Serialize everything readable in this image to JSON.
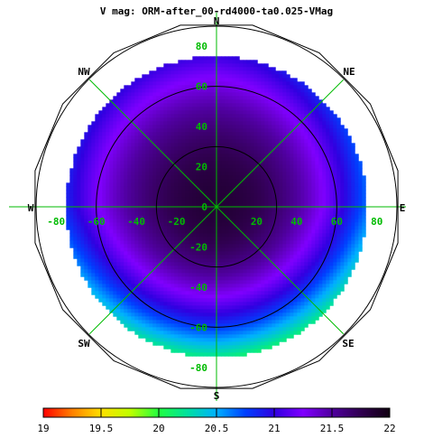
{
  "chart_data": {
    "type": "heatmap",
    "title": "V mag: ORM-after_00-rd4000-ta0.025-VMag",
    "projection": "polar",
    "compass_labels": [
      "N",
      "NE",
      "E",
      "SE",
      "S",
      "SW",
      "W",
      "NW"
    ],
    "axis_ticks": [
      "80",
      "60",
      "40",
      "20",
      "0",
      "-20",
      "-40",
      "-60",
      "-80"
    ],
    "axis_range": [
      -90,
      90
    ],
    "altitude_circles": [
      30,
      60,
      90
    ],
    "data_radius": 75,
    "colorbar": {
      "min": 19,
      "max": 22,
      "ticks": [
        "19",
        "19.5",
        "20",
        "20.5",
        "21",
        "21.5",
        "22"
      ],
      "colors": [
        "#ff0000",
        "#ff8000",
        "#ffe000",
        "#c0ff00",
        "#20ff40",
        "#00e0a0",
        "#00b0ff",
        "#0040ff",
        "#3000e0",
        "#8000ff",
        "#5000a0",
        "#300050",
        "#100010"
      ]
    },
    "sky_model": {
      "zenith_value": 21.85,
      "falloff_coefficient": 0.55,
      "gradient_toward_south": 0.55,
      "gradient_toward_east": 0.25
    },
    "grid": true,
    "colors": {
      "grid": "#00bb00",
      "circle": "#000000",
      "background": "#ffffff"
    }
  }
}
